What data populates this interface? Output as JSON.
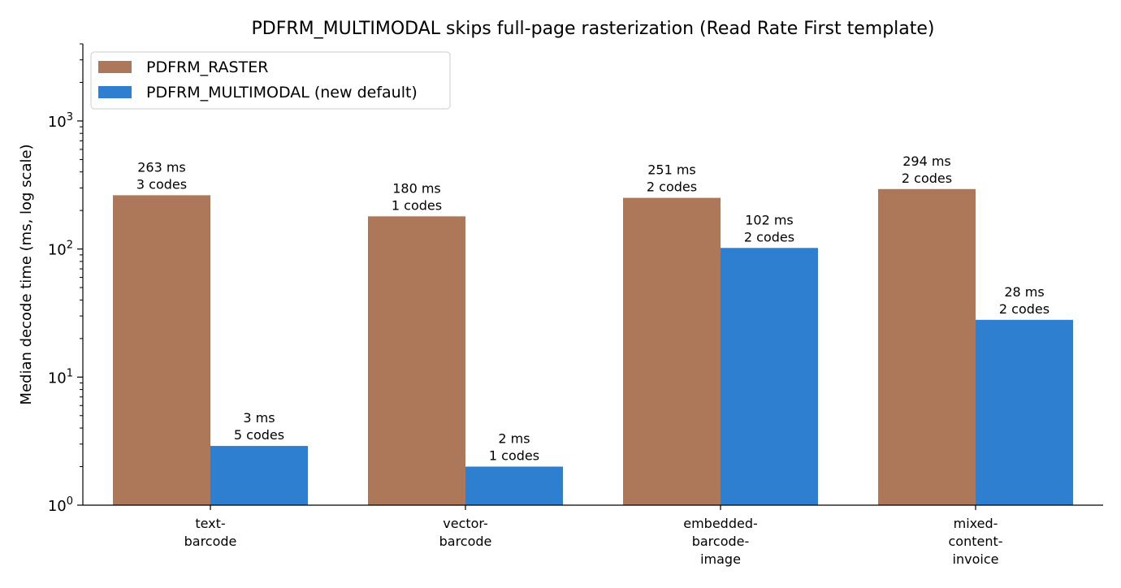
{
  "chart_data": {
    "type": "bar",
    "title": "PDFRM_MULTIMODAL skips full-page rasterization (Read Rate First template)",
    "xlabel": "",
    "ylabel": "Median decode time (ms, log scale)",
    "yscale": "log",
    "ylim": [
      1,
      4000
    ],
    "y_tick_labels": [
      {
        "value": 1,
        "base": "10",
        "exp": "0"
      },
      {
        "value": 10,
        "base": "10",
        "exp": "1"
      },
      {
        "value": 100,
        "base": "10",
        "exp": "2"
      },
      {
        "value": 1000,
        "base": "10",
        "exp": "3"
      }
    ],
    "categories": [
      [
        "text-",
        "barcode"
      ],
      [
        "vector-",
        "barcode"
      ],
      [
        "embedded-",
        "barcode-",
        "image"
      ],
      [
        "mixed-",
        "content-",
        "invoice"
      ]
    ],
    "series": [
      {
        "name": "PDFRM_RASTER",
        "color": "#ad785a",
        "values": [
          263,
          180,
          251,
          294
        ],
        "labels": [
          [
            "263 ms",
            "3 codes"
          ],
          [
            "180 ms",
            "1 codes"
          ],
          [
            "251 ms",
            "2 codes"
          ],
          [
            "294 ms",
            "2 codes"
          ]
        ]
      },
      {
        "name": "PDFRM_MULTIMODAL (new default)",
        "color": "#2e7fd0",
        "values": [
          2.9,
          2.0,
          102,
          28
        ],
        "labels": [
          [
            "3 ms",
            "5 codes"
          ],
          [
            "2 ms",
            "1 codes"
          ],
          [
            "102 ms",
            "2 codes"
          ],
          [
            "28 ms",
            "2 codes"
          ]
        ]
      }
    ],
    "legend_position": "top-left",
    "grid": false
  }
}
